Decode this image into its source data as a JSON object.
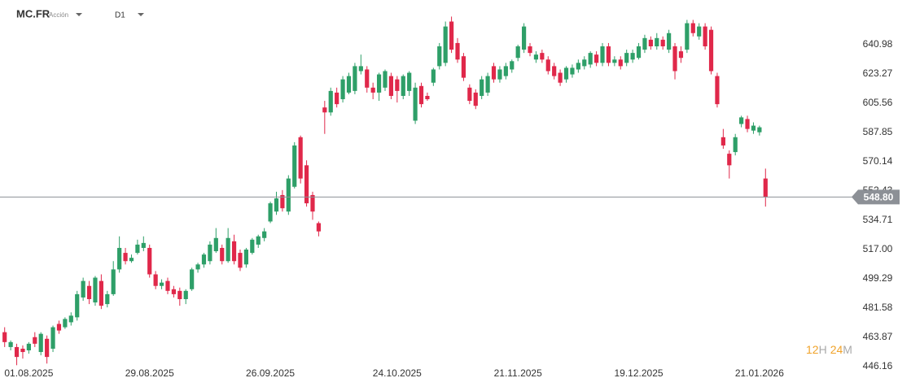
{
  "header": {
    "symbol": "MC.FR",
    "kind": "Acción",
    "timeframe": "D1"
  },
  "badge": [
    "12",
    "H",
    "24",
    "M"
  ],
  "chart_data": {
    "type": "candlestick",
    "categories": [
      null,
      null,
      null,
      null,
      "01.08.2025",
      null,
      null,
      null,
      null,
      null,
      null,
      null,
      null,
      null,
      null,
      null,
      null,
      null,
      null,
      null,
      null,
      null,
      null,
      null,
      "29.08.2025",
      null,
      null,
      null,
      null,
      null,
      null,
      null,
      null,
      null,
      null,
      null,
      null,
      null,
      null,
      null,
      null,
      null,
      null,
      null,
      "26.09.2025",
      null,
      null,
      null,
      null,
      null,
      null,
      null,
      null,
      null,
      null,
      null,
      null,
      null,
      null,
      null,
      null,
      null,
      null,
      null,
      null,
      "24.10.2025",
      null,
      null,
      null,
      null,
      null,
      null,
      null,
      null,
      null,
      null,
      null,
      null,
      null,
      null,
      null,
      null,
      null,
      null,
      null,
      "21.11.2025",
      null,
      null,
      null,
      null,
      null,
      null,
      null,
      null,
      null,
      null,
      null,
      null,
      null,
      null,
      null,
      null,
      null,
      null,
      null,
      "19.12.2025",
      null,
      null,
      null,
      null,
      null,
      null,
      null,
      null,
      null,
      null,
      null,
      null,
      null,
      null,
      null,
      null,
      null,
      null,
      null,
      "21.01.2026",
      null
    ],
    "open": [
      467,
      458,
      458,
      457,
      456,
      464,
      455,
      463,
      457,
      472,
      470,
      473,
      476,
      488,
      495,
      485,
      498,
      484,
      490,
      505,
      515,
      510,
      515,
      518,
      518,
      502,
      495,
      498,
      493,
      492,
      487,
      493,
      505,
      508,
      510,
      516,
      518,
      510,
      522,
      515,
      508,
      515,
      520,
      524,
      534,
      540,
      550,
      540,
      555,
      585,
      568,
      550,
      533,
      603,
      600,
      612,
      608,
      612,
      613,
      625,
      626,
      615,
      612,
      615,
      622,
      620,
      610,
      613,
      595,
      616,
      610,
      618,
      628,
      630,
      655,
      642,
      634,
      615,
      612,
      610,
      612,
      628,
      620,
      622,
      626,
      633,
      638,
      640,
      632,
      636,
      632,
      628,
      624,
      620,
      623,
      626,
      628,
      629,
      635,
      630,
      640,
      630,
      632,
      630,
      632,
      633,
      638,
      644,
      640,
      644,
      638,
      640,
      637,
      638,
      654,
      646,
      652,
      650,
      622,
      585,
      575,
      576,
      593,
      596,
      589,
      588,
      560
    ],
    "high": [
      470,
      462,
      460,
      459,
      461,
      467,
      467,
      465,
      471,
      474,
      476,
      479,
      492,
      500,
      498,
      501,
      502,
      492,
      510,
      525,
      518,
      514,
      523,
      525,
      520,
      504,
      499,
      500,
      495,
      494,
      493,
      506,
      509,
      515,
      522,
      530,
      520,
      530,
      526,
      517,
      518,
      524,
      526,
      530,
      546,
      552,
      553,
      562,
      582,
      586,
      571,
      552,
      534,
      607,
      615,
      615,
      622,
      624,
      630,
      635,
      628,
      618,
      624,
      626,
      624,
      622,
      623,
      625,
      618,
      618,
      612,
      627,
      642,
      655,
      658,
      645,
      636,
      617,
      614,
      622,
      624,
      630,
      628,
      630,
      632,
      641,
      654,
      642,
      637,
      638,
      634,
      630,
      626,
      628,
      629,
      632,
      634,
      637,
      637,
      642,
      642,
      634,
      634,
      638,
      638,
      642,
      647,
      646,
      648,
      646,
      650,
      642,
      640,
      656,
      656,
      654,
      654,
      652,
      624,
      590,
      577,
      587,
      598,
      598,
      594,
      592,
      566
    ],
    "low": [
      458,
      456,
      447,
      451,
      454,
      458,
      453,
      448,
      455,
      466,
      469,
      471,
      474,
      486,
      484,
      483,
      481,
      482,
      489,
      503,
      508,
      509,
      514,
      516,
      500,
      493,
      493,
      490,
      488,
      483,
      484,
      492,
      503,
      506,
      508,
      515,
      508,
      509,
      508,
      504,
      506,
      514,
      518,
      522,
      533,
      538,
      540,
      538,
      554,
      557,
      543,
      535,
      525,
      587,
      598,
      603,
      606,
      611,
      611,
      623,
      612,
      608,
      607,
      613,
      608,
      606,
      608,
      610,
      593,
      603,
      607,
      616,
      626,
      628,
      636,
      630,
      619,
      605,
      602,
      608,
      610,
      618,
      618,
      620,
      624,
      631,
      636,
      634,
      630,
      630,
      623,
      620,
      616,
      618,
      621,
      624,
      626,
      627,
      628,
      628,
      628,
      628,
      626,
      628,
      630,
      632,
      636,
      638,
      638,
      638,
      636,
      620,
      630,
      636,
      646,
      644,
      638,
      623,
      603,
      578,
      560,
      574,
      591,
      588,
      587,
      586,
      543
    ],
    "close": [
      461,
      461,
      452,
      455,
      460,
      460,
      466,
      452,
      470,
      468,
      475,
      477,
      490,
      498,
      487,
      500,
      483,
      490,
      505,
      518,
      510,
      512,
      520,
      521,
      502,
      495,
      497,
      492,
      490,
      487,
      492,
      505,
      508,
      514,
      520,
      524,
      510,
      524,
      510,
      506,
      517,
      523,
      525,
      528,
      545,
      548,
      542,
      560,
      580,
      560,
      545,
      540,
      528,
      600,
      613,
      605,
      620,
      622,
      628,
      628,
      615,
      612,
      623,
      625,
      610,
      613,
      622,
      624,
      615,
      605,
      608,
      626,
      640,
      652,
      638,
      632,
      621,
      607,
      604,
      620,
      622,
      620,
      626,
      628,
      631,
      640,
      652,
      636,
      635,
      632,
      625,
      622,
      618,
      627,
      627,
      630,
      632,
      636,
      630,
      640,
      630,
      632,
      628,
      636,
      636,
      640,
      645,
      640,
      645,
      640,
      648,
      625,
      633,
      654,
      648,
      652,
      640,
      625,
      605,
      580,
      568,
      585,
      597,
      590,
      592,
      591,
      548.8
    ],
    "up_color": "#2e9f68",
    "down_color": "#e0284a",
    "ylim": [
      446.16,
      668.04
    ],
    "yticks": [
      640.98,
      623.27,
      605.56,
      587.85,
      570.14,
      552.43,
      534.71,
      {
        "value": 517,
        "label": "517.00"
      },
      499.29,
      481.58,
      463.87,
      446.16
    ],
    "price_line": {
      "value": 548.8,
      "label": "548.80"
    },
    "grid": false
  }
}
